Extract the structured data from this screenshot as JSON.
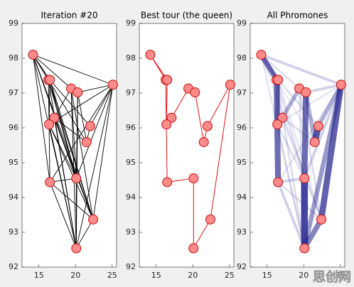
{
  "chart_data": [
    {
      "type": "network",
      "title": "Iteration #20",
      "x": [
        14.2,
        16.3,
        16.5,
        19.4,
        20.3,
        25.1,
        17.1,
        16.4,
        22.0,
        21.5,
        16.5,
        20.1,
        22.4,
        20.1
      ],
      "y": [
        98.1,
        97.38,
        97.38,
        97.13,
        97.02,
        97.24,
        96.29,
        96.1,
        96.05,
        95.59,
        94.44,
        94.55,
        93.37,
        92.54
      ],
      "xlim": [
        12.7,
        25.6
      ],
      "ylim": [
        92,
        99
      ],
      "xticks": [
        15,
        20,
        25
      ],
      "yticks": [
        92,
        93,
        94,
        95,
        96,
        97,
        98,
        99
      ],
      "edge_color": "#000000",
      "edges": [
        [
          0,
          1
        ],
        [
          0,
          2
        ],
        [
          0,
          5
        ],
        [
          0,
          3
        ],
        [
          1,
          2
        ],
        [
          1,
          10
        ],
        [
          2,
          7
        ],
        [
          7,
          6
        ],
        [
          6,
          3
        ],
        [
          3,
          4
        ],
        [
          4,
          11
        ],
        [
          11,
          13
        ],
        [
          13,
          12
        ],
        [
          12,
          5
        ],
        [
          5,
          13
        ],
        [
          5,
          4
        ],
        [
          9,
          8
        ],
        [
          8,
          5
        ],
        [
          4,
          9
        ],
        [
          10,
          11
        ],
        [
          10,
          13
        ],
        [
          6,
          12
        ],
        [
          7,
          11
        ],
        [
          2,
          12
        ],
        [
          0,
          13
        ],
        [
          1,
          11
        ],
        [
          3,
          13
        ],
        [
          7,
          13
        ],
        [
          6,
          9
        ],
        [
          2,
          8
        ],
        [
          10,
          12
        ],
        [
          5,
          11
        ],
        [
          5,
          7
        ],
        [
          5,
          10
        ],
        [
          0,
          9
        ],
        [
          0,
          12
        ],
        [
          3,
          12
        ],
        [
          1,
          13
        ],
        [
          6,
          11
        ],
        [
          7,
          12
        ],
        [
          2,
          11
        ],
        [
          4,
          13
        ],
        [
          3,
          11
        ],
        [
          6,
          13
        ],
        [
          1,
          12
        ],
        [
          0,
          11
        ],
        [
          0,
          10
        ]
      ]
    },
    {
      "type": "tour",
      "title": "Best tour (the queen)",
      "x": [
        14.2,
        16.3,
        16.5,
        19.4,
        20.3,
        25.1,
        17.1,
        16.4,
        22.0,
        21.5,
        16.5,
        20.1,
        22.4,
        20.1
      ],
      "y": [
        98.1,
        97.38,
        97.38,
        97.13,
        97.02,
        97.24,
        96.29,
        96.1,
        96.05,
        95.59,
        94.44,
        94.55,
        93.37,
        92.54
      ],
      "xlim": [
        12.7,
        25.6
      ],
      "ylim": [
        92,
        99
      ],
      "xticks": [
        15,
        20,
        25
      ],
      "yticks": [
        92,
        93,
        94,
        95,
        96,
        97,
        98,
        99
      ],
      "edge_color": "#e01010",
      "tour": [
        0,
        2,
        7,
        6,
        3,
        4,
        9,
        8,
        5,
        12,
        13,
        11,
        10,
        1,
        0
      ]
    },
    {
      "type": "pheromone",
      "title": "All Phromones",
      "x": [
        14.2,
        16.3,
        16.5,
        19.4,
        20.3,
        25.1,
        17.1,
        16.4,
        22.0,
        21.5,
        16.5,
        20.1,
        22.4,
        20.1
      ],
      "y": [
        98.1,
        97.38,
        97.38,
        97.13,
        97.02,
        97.24,
        96.29,
        96.1,
        96.05,
        95.59,
        94.44,
        94.55,
        93.37,
        92.54
      ],
      "xlim": [
        12.7,
        25.6
      ],
      "ylim": [
        92,
        99
      ],
      "xticks": [
        15,
        20,
        25
      ],
      "yticks": [
        92,
        93,
        94,
        95,
        96,
        97,
        98,
        99
      ],
      "edge_color": "#2a2a90",
      "edges": [
        [
          0,
          1,
          0.7
        ],
        [
          0,
          2,
          0.5
        ],
        [
          0,
          5,
          0.3
        ],
        [
          0,
          3,
          0.2
        ],
        [
          1,
          2,
          0.4
        ],
        [
          1,
          10,
          0.8
        ],
        [
          2,
          7,
          0.5
        ],
        [
          7,
          6,
          0.6
        ],
        [
          6,
          3,
          0.5
        ],
        [
          3,
          4,
          0.9
        ],
        [
          4,
          11,
          0.8
        ],
        [
          11,
          13,
          0.95
        ],
        [
          13,
          12,
          0.7
        ],
        [
          12,
          5,
          0.85
        ],
        [
          5,
          13,
          0.6
        ],
        [
          5,
          4,
          0.3
        ],
        [
          9,
          8,
          0.9
        ],
        [
          8,
          5,
          0.5
        ],
        [
          4,
          9,
          0.5
        ],
        [
          10,
          11,
          0.3
        ],
        [
          10,
          13,
          0.3
        ],
        [
          6,
          12,
          0.2
        ],
        [
          7,
          11,
          0.2
        ],
        [
          2,
          12,
          0.15
        ],
        [
          0,
          13,
          0.15
        ],
        [
          1,
          11,
          0.2
        ],
        [
          3,
          13,
          0.2
        ],
        [
          7,
          13,
          0.15
        ],
        [
          6,
          9,
          0.2
        ],
        [
          2,
          8,
          0.2
        ],
        [
          10,
          12,
          0.2
        ],
        [
          5,
          11,
          0.3
        ],
        [
          5,
          7,
          0.15
        ],
        [
          5,
          10,
          0.15
        ],
        [
          0,
          9,
          0.1
        ],
        [
          0,
          12,
          0.1
        ],
        [
          3,
          12,
          0.2
        ],
        [
          1,
          13,
          0.2
        ]
      ]
    }
  ],
  "watermark": "思创网"
}
